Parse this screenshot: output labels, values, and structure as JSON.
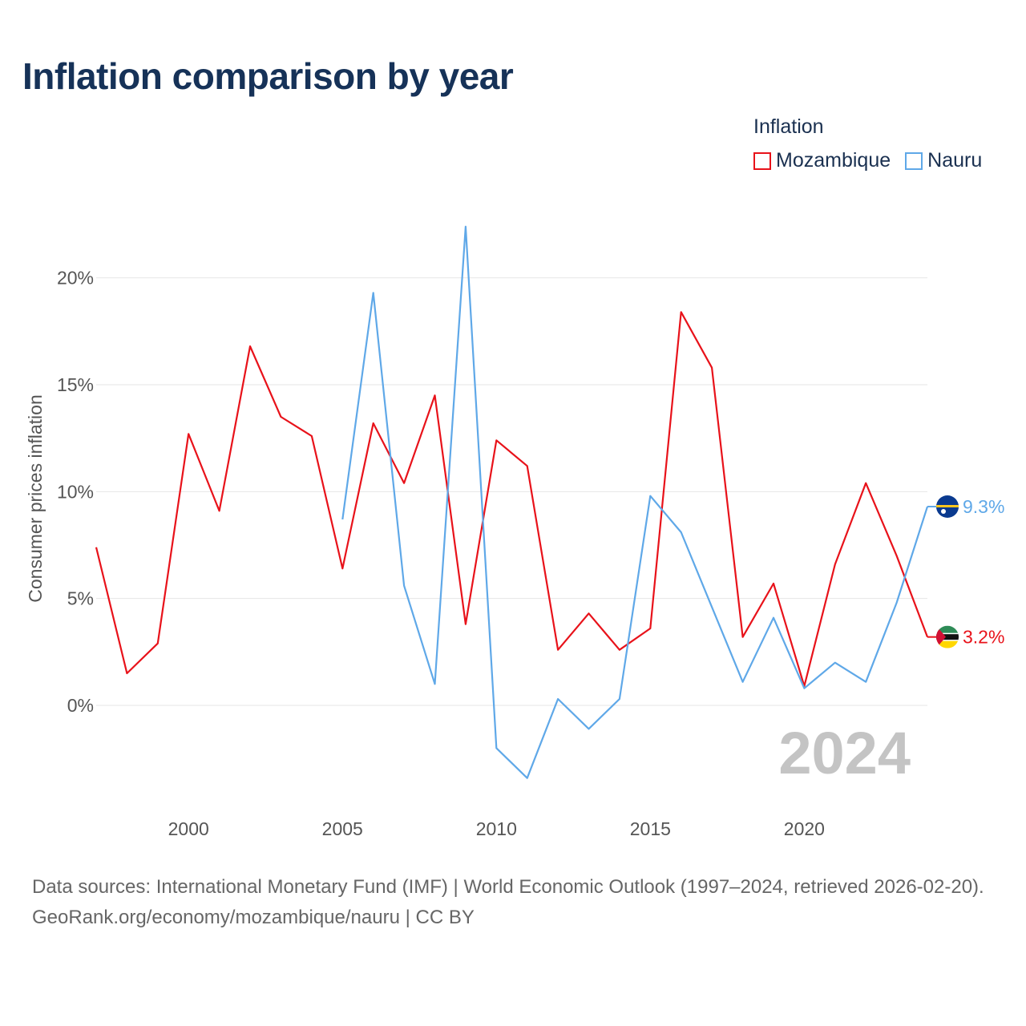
{
  "title": "Inflation comparison by year",
  "legend": {
    "title": "Inflation",
    "items": [
      {
        "label": "Mozambique",
        "color": "#e8121a"
      },
      {
        "label": "Nauru",
        "color": "#5fa8e8"
      }
    ]
  },
  "watermark_year": "2024",
  "footer": {
    "sources": "Data sources: International Monetary Fund (IMF) | World Economic Outlook (1997–2024, retrieved 2026-02-20).",
    "credit": "GeoRank.org/economy/mozambique/nauru | CC BY"
  },
  "chart_data": {
    "type": "line",
    "title": "Inflation comparison by year",
    "xlabel": "",
    "ylabel": "Consumer prices inflation",
    "xlim": [
      1997,
      2024
    ],
    "ylim": [
      -4.5,
      22.5
    ],
    "x_ticks": [
      2000,
      2005,
      2010,
      2015,
      2020
    ],
    "y_ticks": [
      0,
      5,
      10,
      15,
      20
    ],
    "y_tick_labels": [
      "0%",
      "5%",
      "10%",
      "15%",
      "20%"
    ],
    "grid": true,
    "legend_position": "top-right",
    "series": [
      {
        "name": "Mozambique",
        "color": "#e8121a",
        "end_label": "3.2%",
        "flag": "mozambique-flag",
        "x": [
          1997,
          1998,
          1999,
          2000,
          2001,
          2002,
          2003,
          2004,
          2005,
          2006,
          2007,
          2008,
          2009,
          2010,
          2011,
          2012,
          2013,
          2014,
          2015,
          2016,
          2017,
          2018,
          2019,
          2020,
          2021,
          2022,
          2023,
          2024
        ],
        "values": [
          7.4,
          1.5,
          2.9,
          12.7,
          9.1,
          16.8,
          13.5,
          12.6,
          6.4,
          13.2,
          10.4,
          14.5,
          3.8,
          12.4,
          11.2,
          2.6,
          4.3,
          2.6,
          3.6,
          18.4,
          15.8,
          3.2,
          5.7,
          0.9,
          6.6,
          10.4,
          7.0,
          3.2
        ]
      },
      {
        "name": "Nauru",
        "color": "#5fa8e8",
        "end_label": "9.3%",
        "flag": "nauru-flag",
        "x": [
          2005,
          2006,
          2007,
          2008,
          2009,
          2010,
          2011,
          2012,
          2013,
          2014,
          2015,
          2016,
          2017,
          2018,
          2019,
          2020,
          2021,
          2022,
          2023,
          2024
        ],
        "values": [
          8.7,
          19.3,
          5.6,
          1.0,
          22.4,
          -2.0,
          -3.4,
          0.3,
          -1.1,
          0.3,
          9.8,
          8.1,
          4.6,
          1.1,
          4.1,
          0.8,
          2.0,
          1.1,
          4.8,
          9.3
        ]
      }
    ]
  }
}
